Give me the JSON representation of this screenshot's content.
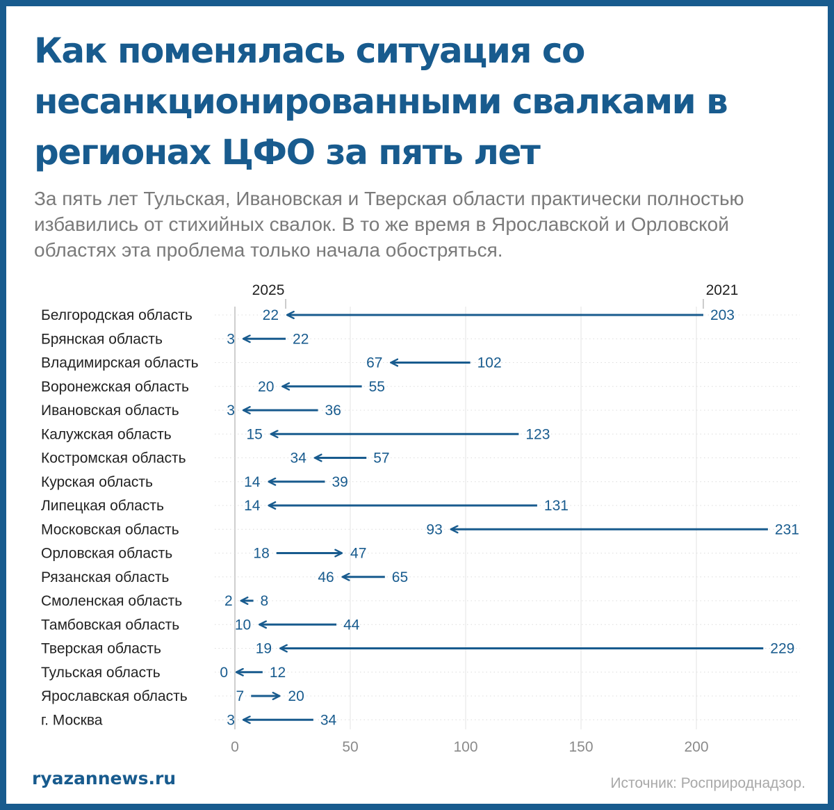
{
  "title": "Как поменялась ситуация со несанкционированными свалками в регионах ЦФО за пять лет",
  "subtitle": "За пять лет Тульская, Ивановская и Тверская области практически полностью избавились от стихийных свалок. В то же время в Ярославской и Орловской областях эта проблема только начала обостряться.",
  "brand": "ryazannews.ru",
  "source": "Источник: Росприроднадзор.",
  "colors": {
    "accent": "#185b8e",
    "label": "#222222",
    "muted": "#7a7a7a"
  },
  "chart_data": {
    "type": "arrow",
    "start_label": "2021",
    "end_label": "2025",
    "xlim": [
      0,
      240
    ],
    "xticks": [
      0,
      50,
      100,
      150,
      200
    ],
    "grid": true,
    "categories": [
      "Белгородская область",
      "Брянская область",
      "Владимирская область",
      "Воронежская область",
      "Ивановская область",
      "Калужская область",
      "Костромская область",
      "Курская область",
      "Липецкая область",
      "Московская область",
      "Орловская область",
      "Рязанская область",
      "Смоленская область",
      "Тамбовская область",
      "Тверская область",
      "Тульская область",
      "Ярославская область",
      "г. Москва"
    ],
    "series": [
      {
        "name": "2021",
        "values": [
          203,
          22,
          102,
          55,
          36,
          123,
          57,
          39,
          131,
          231,
          18,
          65,
          8,
          44,
          229,
          12,
          7,
          34
        ]
      },
      {
        "name": "2025",
        "values": [
          22,
          3,
          67,
          20,
          3,
          15,
          34,
          14,
          14,
          93,
          47,
          46,
          2,
          10,
          19,
          0,
          20,
          3
        ]
      }
    ]
  }
}
